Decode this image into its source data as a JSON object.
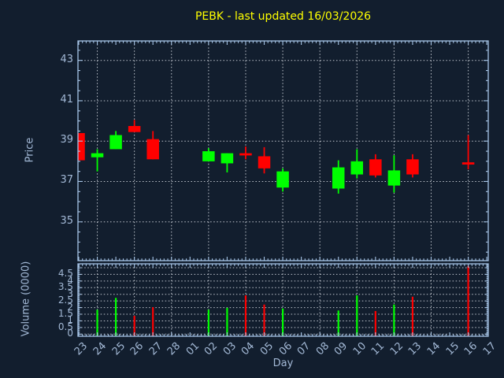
{
  "chart_data": {
    "type": "candlestick+volume",
    "title": "PEBK - last updated 16/03/2026",
    "xlabel": "Day",
    "x_categories": [
      "23",
      "24",
      "25",
      "26",
      "27",
      "28",
      "01",
      "02",
      "03",
      "04",
      "05",
      "06",
      "07",
      "08",
      "09",
      "10",
      "11",
      "12",
      "13",
      "14",
      "15",
      "16",
      "17"
    ],
    "x_gridline_categories": [
      "24",
      "26",
      "28",
      "02",
      "04",
      "06",
      "08",
      "10",
      "12",
      "14",
      "16"
    ],
    "price": {
      "ylabel": "Price",
      "yticks": [
        35,
        37,
        39,
        41,
        43
      ],
      "ylim": [
        33.05,
        43.95
      ],
      "grid": "dotted"
    },
    "volume": {
      "ylabel": "Volume (0000)",
      "yticks": [
        0,
        0.5,
        1,
        1.5,
        2,
        2.5,
        3,
        3.5,
        4,
        4.5
      ],
      "gridline_values": [
        0,
        0.5,
        1,
        1.5,
        2,
        2.5,
        3,
        3.5,
        4,
        4.5,
        5
      ],
      "ylim": [
        -0.15,
        5.3
      ],
      "grid": "dotted"
    },
    "series": [
      {
        "day": "23",
        "open": 39.4,
        "high": 39.4,
        "low": 38.05,
        "close": 38.05,
        "volume": null
      },
      {
        "day": "24",
        "open": 38.2,
        "high": 38.6,
        "low": 37.5,
        "close": 38.4,
        "volume": 1.84
      },
      {
        "day": "25",
        "open": 38.6,
        "high": 39.5,
        "low": 38.6,
        "close": 39.3,
        "volume": 2.73
      },
      {
        "day": "26",
        "open": 39.75,
        "high": 40.05,
        "low": 39.45,
        "close": 39.45,
        "volume": 1.38
      },
      {
        "day": "27",
        "open": 39.1,
        "high": 39.5,
        "low": 38.1,
        "close": 38.1,
        "volume": 2.03
      },
      {
        "day": "02",
        "open": 38.0,
        "high": 38.65,
        "low": 38.0,
        "close": 38.5,
        "volume": 1.84
      },
      {
        "day": "03",
        "open": 37.9,
        "high": 38.4,
        "low": 37.45,
        "close": 38.4,
        "volume": 1.98
      },
      {
        "day": "04",
        "open": 38.4,
        "high": 38.73,
        "low": 38.1,
        "close": 38.3,
        "volume": 2.92
      },
      {
        "day": "05",
        "open": 38.25,
        "high": 38.7,
        "low": 37.4,
        "close": 37.65,
        "volume": 2.23
      },
      {
        "day": "06",
        "open": 36.7,
        "high": 37.65,
        "low": 36.5,
        "close": 37.5,
        "volume": 1.93
      },
      {
        "day": "09",
        "open": 36.65,
        "high": 38.05,
        "low": 36.4,
        "close": 37.7,
        "volume": 1.78
      },
      {
        "day": "10",
        "open": 37.35,
        "high": 38.6,
        "low": 37.15,
        "close": 38.0,
        "volume": 2.92
      },
      {
        "day": "11",
        "open": 38.1,
        "high": 38.35,
        "low": 37.2,
        "close": 37.3,
        "volume": 1.74
      },
      {
        "day": "12",
        "open": 36.8,
        "high": 38.3,
        "low": 36.45,
        "close": 37.55,
        "volume": 2.23
      },
      {
        "day": "13",
        "open": 38.1,
        "high": 38.35,
        "low": 37.2,
        "close": 37.35,
        "volume": 2.82
      },
      {
        "day": "16",
        "open": 37.95,
        "high": 39.3,
        "low": 37.6,
        "close": 37.9,
        "volume": 5.14
      }
    ],
    "colors": {
      "background": "#121e2e",
      "axis": "#a6c4e6",
      "tick_label": "#a3b9d6",
      "grid": "#c9ced6",
      "title": "#ffff00",
      "up": "#00ff00",
      "down": "#ff0000"
    },
    "legend": "none"
  }
}
